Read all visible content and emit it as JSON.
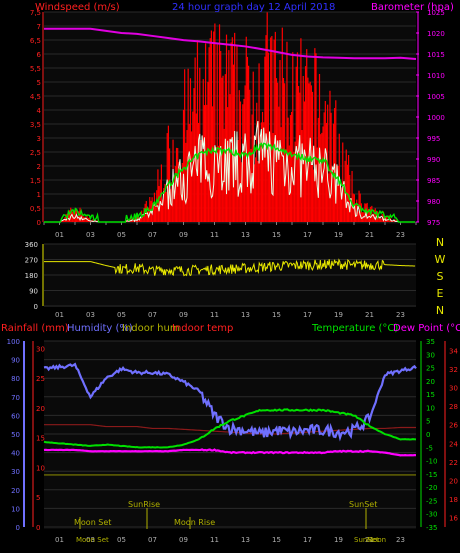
{
  "top": {
    "title": "24 hour graph day  12 April 2018",
    "left_label": "Windspeed (m/s)",
    "right_label": "Barometer (hpa)",
    "wind_ticks": [
      "0",
      "0,5",
      "1",
      "1,5",
      "2",
      "2,5",
      "3",
      "3,5",
      "4",
      "4,5",
      "5",
      "5,5",
      "6",
      "6,5",
      "7",
      "7,5"
    ],
    "baro_ticks": [
      "975",
      "980",
      "985",
      "990",
      "995",
      "1000",
      "1005",
      "1010",
      "1015",
      "1020",
      "1025"
    ],
    "hour_ticks": [
      "01",
      "03",
      "05",
      "07",
      "09",
      "11",
      "13",
      "15",
      "17",
      "19",
      "21",
      "23"
    ]
  },
  "mid": {
    "dir_ticks": [
      "360",
      "270",
      "180",
      "90",
      "0"
    ],
    "compass": [
      "N",
      "W",
      "S",
      "E",
      "N"
    ],
    "hour_ticks": [
      "01",
      "03",
      "05",
      "07",
      "09",
      "11",
      "13",
      "15",
      "17",
      "19",
      "21",
      "23"
    ]
  },
  "bottom": {
    "labels": {
      "rainfall": "Rainfall (mm)",
      "humidity": "Humidity (%)",
      "indoor_hum": "Indoor hum",
      "indoor_temp": "Indoor temp",
      "temperature": "Temperature (°C)",
      "dewpoint": "Dew Point (°C)"
    },
    "humidity_ticks": [
      "0",
      "10",
      "20",
      "30",
      "40",
      "50",
      "60",
      "70",
      "80",
      "90",
      "100"
    ],
    "rain_ticks": [
      "0",
      "5",
      "10",
      "15",
      "20",
      "25",
      "30"
    ],
    "temp_ticks": [
      "-35",
      "-30",
      "-25",
      "-20",
      "-15",
      "-10",
      "-5",
      "0",
      "5",
      "10",
      "15",
      "20",
      "25",
      "30",
      "35"
    ],
    "indoor_ticks": [
      "16",
      "18",
      "20",
      "22",
      "24",
      "26",
      "28",
      "30",
      "32",
      "34"
    ],
    "hour_ticks": [
      "01",
      "03",
      "05",
      "07",
      "09",
      "11",
      "13",
      "15",
      "17",
      "19",
      "21",
      "23"
    ],
    "annotations": [
      "Moon Set",
      "Moon Set",
      "SunRise",
      "Moon Rise",
      "SunSet",
      "SunSet",
      "Moon"
    ]
  },
  "colors": {
    "windspeed": "#ff0000",
    "wind_avg": "#00e000",
    "gust": "#e8ffe8",
    "barometer": "#e000e0",
    "direction": "#e8e800",
    "humidity": "#7070ff",
    "temperature": "#00e000",
    "dewpoint": "#ff00ff",
    "indoor_temp": "#8b1a1a",
    "indoor_hum": "#808000",
    "rain": "#a00000"
  },
  "chart_data": [
    {
      "type": "bar",
      "title": "24 hour graph day  12 April 2018",
      "ylabel": "Windspeed (m/s)",
      "y2label": "Barometer (hpa)",
      "ylim": [
        0,
        7.5
      ],
      "y2lim": [
        975,
        1025
      ],
      "x_hours": [
        0,
        1,
        2,
        3,
        4,
        5,
        6,
        7,
        8,
        9,
        10,
        11,
        12,
        13,
        14,
        15,
        16,
        17,
        18,
        19,
        20,
        21,
        22,
        23,
        24
      ],
      "series": [
        {
          "name": "Windspeed (m/s)",
          "values": [
            0,
            0,
            0.6,
            0.1,
            0,
            0,
            0.2,
            0.9,
            2.8,
            4.3,
            5.4,
            5.9,
            5.7,
            5.4,
            6.2,
            6.0,
            5.5,
            5.1,
            5.0,
            3.3,
            1.2,
            0.5,
            0.3,
            0,
            0
          ]
        },
        {
          "name": "Barometer (hpa)",
          "values": [
            1021,
            1021,
            1021,
            1021,
            1020.5,
            1020,
            1019.8,
            1019.3,
            1018.8,
            1018.3,
            1018,
            1017.6,
            1017.2,
            1016.8,
            1016.2,
            1015.5,
            1014.8,
            1014.4,
            1014.2,
            1014.1,
            1014,
            1014,
            1014,
            1014.1,
            1013.8
          ]
        }
      ]
    },
    {
      "type": "line",
      "ylabel": "Wind direction",
      "ylim": [
        0,
        360
      ],
      "x_hours": [
        0,
        1,
        2,
        3,
        4,
        5,
        6,
        7,
        8,
        9,
        10,
        11,
        12,
        13,
        14,
        15,
        16,
        17,
        18,
        19,
        20,
        21,
        22,
        23,
        24
      ],
      "series": [
        {
          "name": "Direction",
          "values": [
            258,
            258,
            258,
            258,
            235,
            215,
            220,
            205,
            210,
            205,
            210,
            212,
            215,
            218,
            225,
            232,
            235,
            238,
            240,
            245,
            235,
            238,
            240,
            235,
            232
          ]
        }
      ]
    },
    {
      "type": "line",
      "x_hours": [
        0,
        1,
        2,
        3,
        4,
        5,
        6,
        7,
        8,
        9,
        10,
        11,
        12,
        13,
        14,
        15,
        16,
        17,
        18,
        19,
        20,
        21,
        22,
        23,
        24
      ],
      "series": [
        {
          "name": "Humidity (%)",
          "axis": "humidity",
          "values": [
            85,
            86,
            87,
            70,
            80,
            85,
            83,
            83,
            82,
            78,
            73,
            60,
            53,
            52,
            50,
            52,
            51,
            52,
            52,
            51,
            52,
            58,
            82,
            84,
            86
          ]
        },
        {
          "name": "Temperature (°C)",
          "axis": "temperature",
          "values": [
            -3,
            -3.5,
            -4,
            -4.5,
            -4,
            -4.5,
            -5,
            -5,
            -5,
            -4,
            -2,
            2,
            5,
            7,
            9,
            9,
            9,
            9,
            9,
            8,
            7,
            3,
            0,
            -2,
            -2
          ]
        },
        {
          "name": "Dew Point (°C)",
          "axis": "temperature",
          "values": [
            -6,
            -6,
            -6,
            -6.5,
            -6.5,
            -6.5,
            -6.5,
            -6.5,
            -6.5,
            -6,
            -6,
            -6,
            -7,
            -7,
            -7,
            -7,
            -7,
            -7,
            -7,
            -6.5,
            -6.5,
            -6.5,
            -7,
            -8,
            -8
          ]
        },
        {
          "name": "Indoor temp",
          "axis": "indoor",
          "values": [
            26,
            26,
            26,
            26,
            25.8,
            25.8,
            25.8,
            25.6,
            25.6,
            25.5,
            25.4,
            25.3,
            25.2,
            25.1,
            25,
            25,
            25.1,
            25.2,
            25.3,
            25.4,
            25.5,
            25.6,
            25.6,
            25.7,
            25.7
          ]
        },
        {
          "name": "Indoor hum",
          "axis": "humidity",
          "values": [
            28,
            28,
            28,
            28,
            28,
            28,
            28,
            28,
            28,
            28,
            28,
            28,
            28,
            28,
            28,
            28,
            28,
            28,
            28,
            28,
            28,
            28,
            28,
            28,
            28
          ]
        },
        {
          "name": "Rainfall (mm)",
          "axis": "rain",
          "values": [
            0,
            0,
            0,
            0,
            0,
            0,
            0,
            0,
            0,
            0,
            0,
            0,
            0,
            0,
            0,
            0,
            0,
            0,
            0,
            0,
            0,
            0,
            0,
            0,
            0
          ]
        }
      ]
    }
  ]
}
